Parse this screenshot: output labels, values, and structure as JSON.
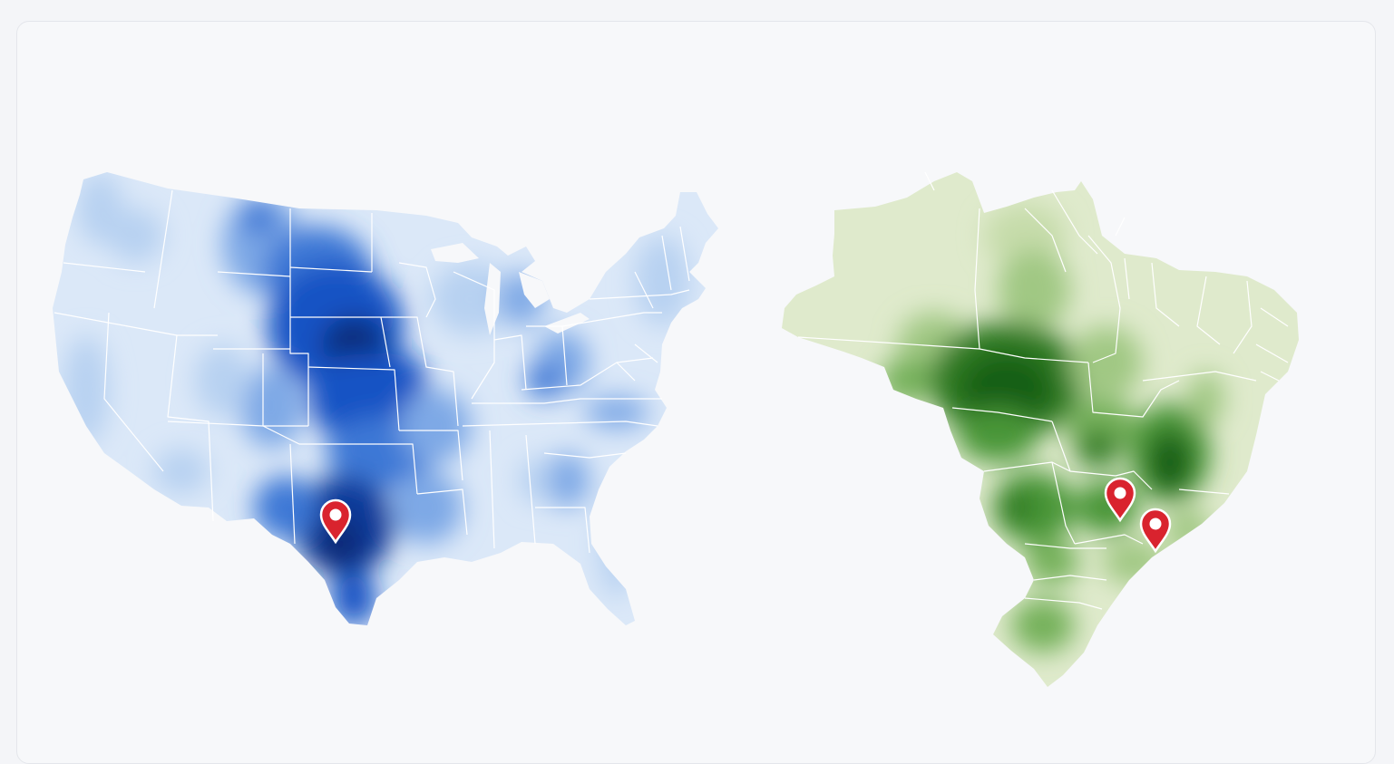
{
  "maps": [
    {
      "id": "usa",
      "label": "",
      "palette": [
        "#dbe8f8",
        "#b7d1f1",
        "#7ea9e6",
        "#3e78d6",
        "#1553c4",
        "#0a3a9a",
        "#072a78"
      ],
      "pins": 1,
      "pin_color": "#d9232e"
    },
    {
      "id": "brazil",
      "label": "",
      "palette": [
        "#dfeacc",
        "#c6dcaa",
        "#a0c883",
        "#74b15a",
        "#4a9638",
        "#2d7a22",
        "#195e12"
      ],
      "pins": 2,
      "pin_color": "#d9232e"
    }
  ]
}
